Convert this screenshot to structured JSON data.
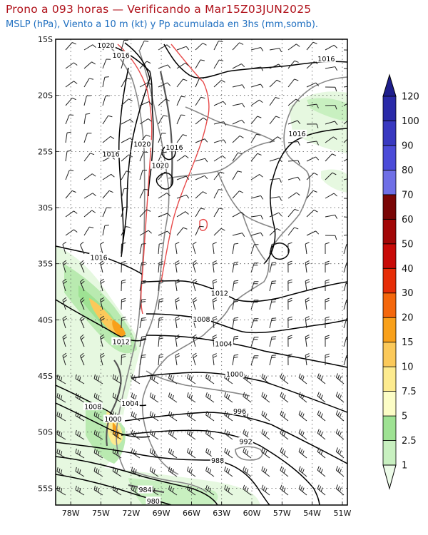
{
  "header": {
    "title": "Prono a 093 horas — Verificando a Mar15Z03JUN2025",
    "subtitle": "MSLP (hPa), Viento a 10 m (kt) y Pp acumulada en 3hs (mm,somb)."
  },
  "axes": {
    "lat_labels": [
      "15S",
      "20S",
      "25S",
      "30S",
      "35S",
      "40S",
      "45S",
      "50S",
      "55S"
    ],
    "lon_labels": [
      "78W",
      "75W",
      "72W",
      "69W",
      "66W",
      "63W",
      "60W",
      "57W",
      "54W",
      "51W"
    ]
  },
  "isobar_labels": [
    {
      "text": "1020",
      "lat": -15.6,
      "lon": -74.5
    },
    {
      "text": "1016",
      "lat": -16.5,
      "lon": -73.0
    },
    {
      "text": "1016",
      "lat": -16.8,
      "lon": -52.6
    },
    {
      "text": "1016",
      "lat": -23.5,
      "lon": -55.5
    },
    {
      "text": "1020",
      "lat": -24.4,
      "lon": -70.9
    },
    {
      "text": "1016",
      "lat": -24.7,
      "lon": -67.7
    },
    {
      "text": "1020",
      "lat": -26.3,
      "lon": -69.1
    },
    {
      "text": "1016",
      "lat": -25.3,
      "lon": -74.0
    },
    {
      "text": "1016",
      "lat": -34.5,
      "lon": -75.2
    },
    {
      "text": "1012",
      "lat": -37.7,
      "lon": -63.2
    },
    {
      "text": "1008",
      "lat": -40.0,
      "lon": -65.0
    },
    {
      "text": "1004",
      "lat": -42.2,
      "lon": -62.8
    },
    {
      "text": "1012",
      "lat": -42.0,
      "lon": -73.0
    },
    {
      "text": "1000",
      "lat": -44.9,
      "lon": -61.7
    },
    {
      "text": "1004",
      "lat": -47.5,
      "lon": -72.1
    },
    {
      "text": "1008",
      "lat": -47.8,
      "lon": -75.8
    },
    {
      "text": "1000",
      "lat": -48.9,
      "lon": -73.8
    },
    {
      "text": "996",
      "lat": -48.2,
      "lon": -61.2
    },
    {
      "text": "992",
      "lat": -50.9,
      "lon": -60.6
    },
    {
      "text": "988",
      "lat": -52.6,
      "lon": -63.4
    },
    {
      "text": "984",
      "lat": -55.2,
      "lon": -70.6
    },
    {
      "text": "980",
      "lat": -56.2,
      "lon": -69.8
    }
  ],
  "colorbar": {
    "unit": "mm",
    "levels": [
      "1",
      "2.5",
      "5",
      "7.5",
      "10",
      "15",
      "20",
      "30",
      "40",
      "50",
      "60",
      "70",
      "80",
      "90",
      "100",
      "120"
    ],
    "colors": [
      "#ecfbe8",
      "#c8f0c0",
      "#9ee293",
      "#fcfdc6",
      "#fdeb8f",
      "#fbc95a",
      "#f8a01a",
      "#f4670c",
      "#e62d07",
      "#c80a07",
      "#a20707",
      "#7a0606",
      "#6f6fe6",
      "#4b4bd8",
      "#3838c0",
      "#2a2aa8",
      "#1e1e8c"
    ]
  }
}
